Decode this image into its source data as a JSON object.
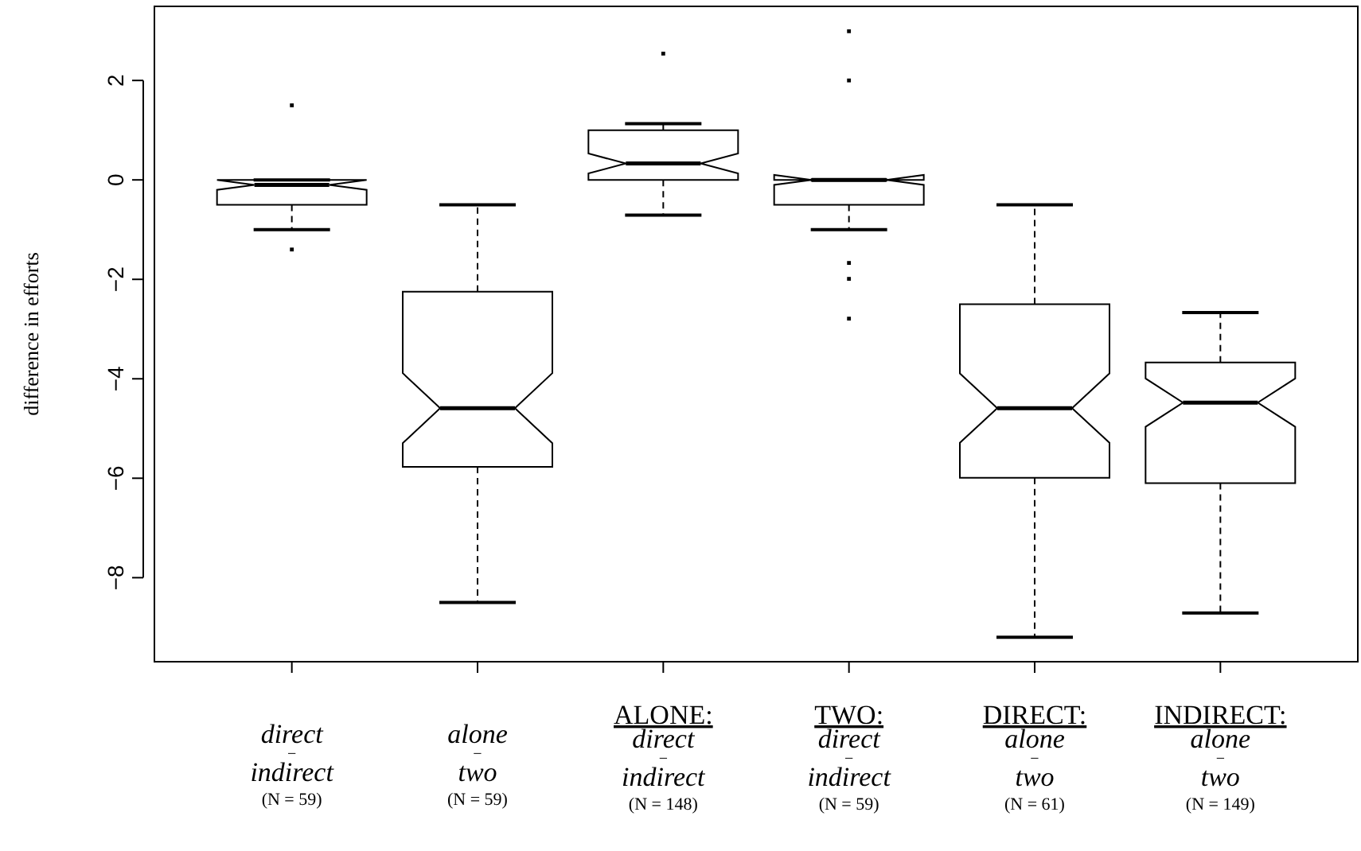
{
  "chart_data": {
    "type": "box",
    "ylabel": "difference in efforts",
    "categories": [
      "direct\n−\nindirect\n(N = 59)",
      "alone\n−\ntwo\n(N = 59)",
      "ALONE:\ndirect\n−\nindirect\n(N = 148)",
      "TWO:\ndirect\n−\nindirect\n(N = 59)",
      "DIRECT:\nalone\n−\ntwo\n(N = 61)",
      "INDIRECT:\nalone\n−\ntwo\n(N = 149)"
    ],
    "boxes": [
      {
        "low": -1.0,
        "q1": -0.5,
        "median": -0.1,
        "q3": 0,
        "high": 0,
        "outliers": [
          1.5,
          -1.4
        ]
      },
      {
        "low": -8.5,
        "q1": -5.77,
        "median": -4.59,
        "q3": -2.25,
        "high": -0.5
      },
      {
        "low": -0.71,
        "q1": 0,
        "median": 0.33,
        "q3": 1.0,
        "high": 1.13,
        "outliers": [
          2.54
        ]
      },
      {
        "low": -1.0,
        "q1": -0.5,
        "median": 0,
        "q3": 0,
        "high": 0,
        "outliers": [
          2.99,
          2.0,
          -1.67,
          -1.99,
          -2.79
        ]
      },
      {
        "low": -9.2,
        "q1": -5.99,
        "median": -4.59,
        "q3": -2.5,
        "high": -0.5
      },
      {
        "low": -8.71,
        "q1": -6.1,
        "median": -4.48,
        "q3": -3.67,
        "high": -2.67
      }
    ],
    "ylim": [
      -9.69,
      3.49
    ],
    "yticks": [
      -8,
      -6,
      -4,
      -2,
      0,
      2
    ],
    "grid": false
  }
}
